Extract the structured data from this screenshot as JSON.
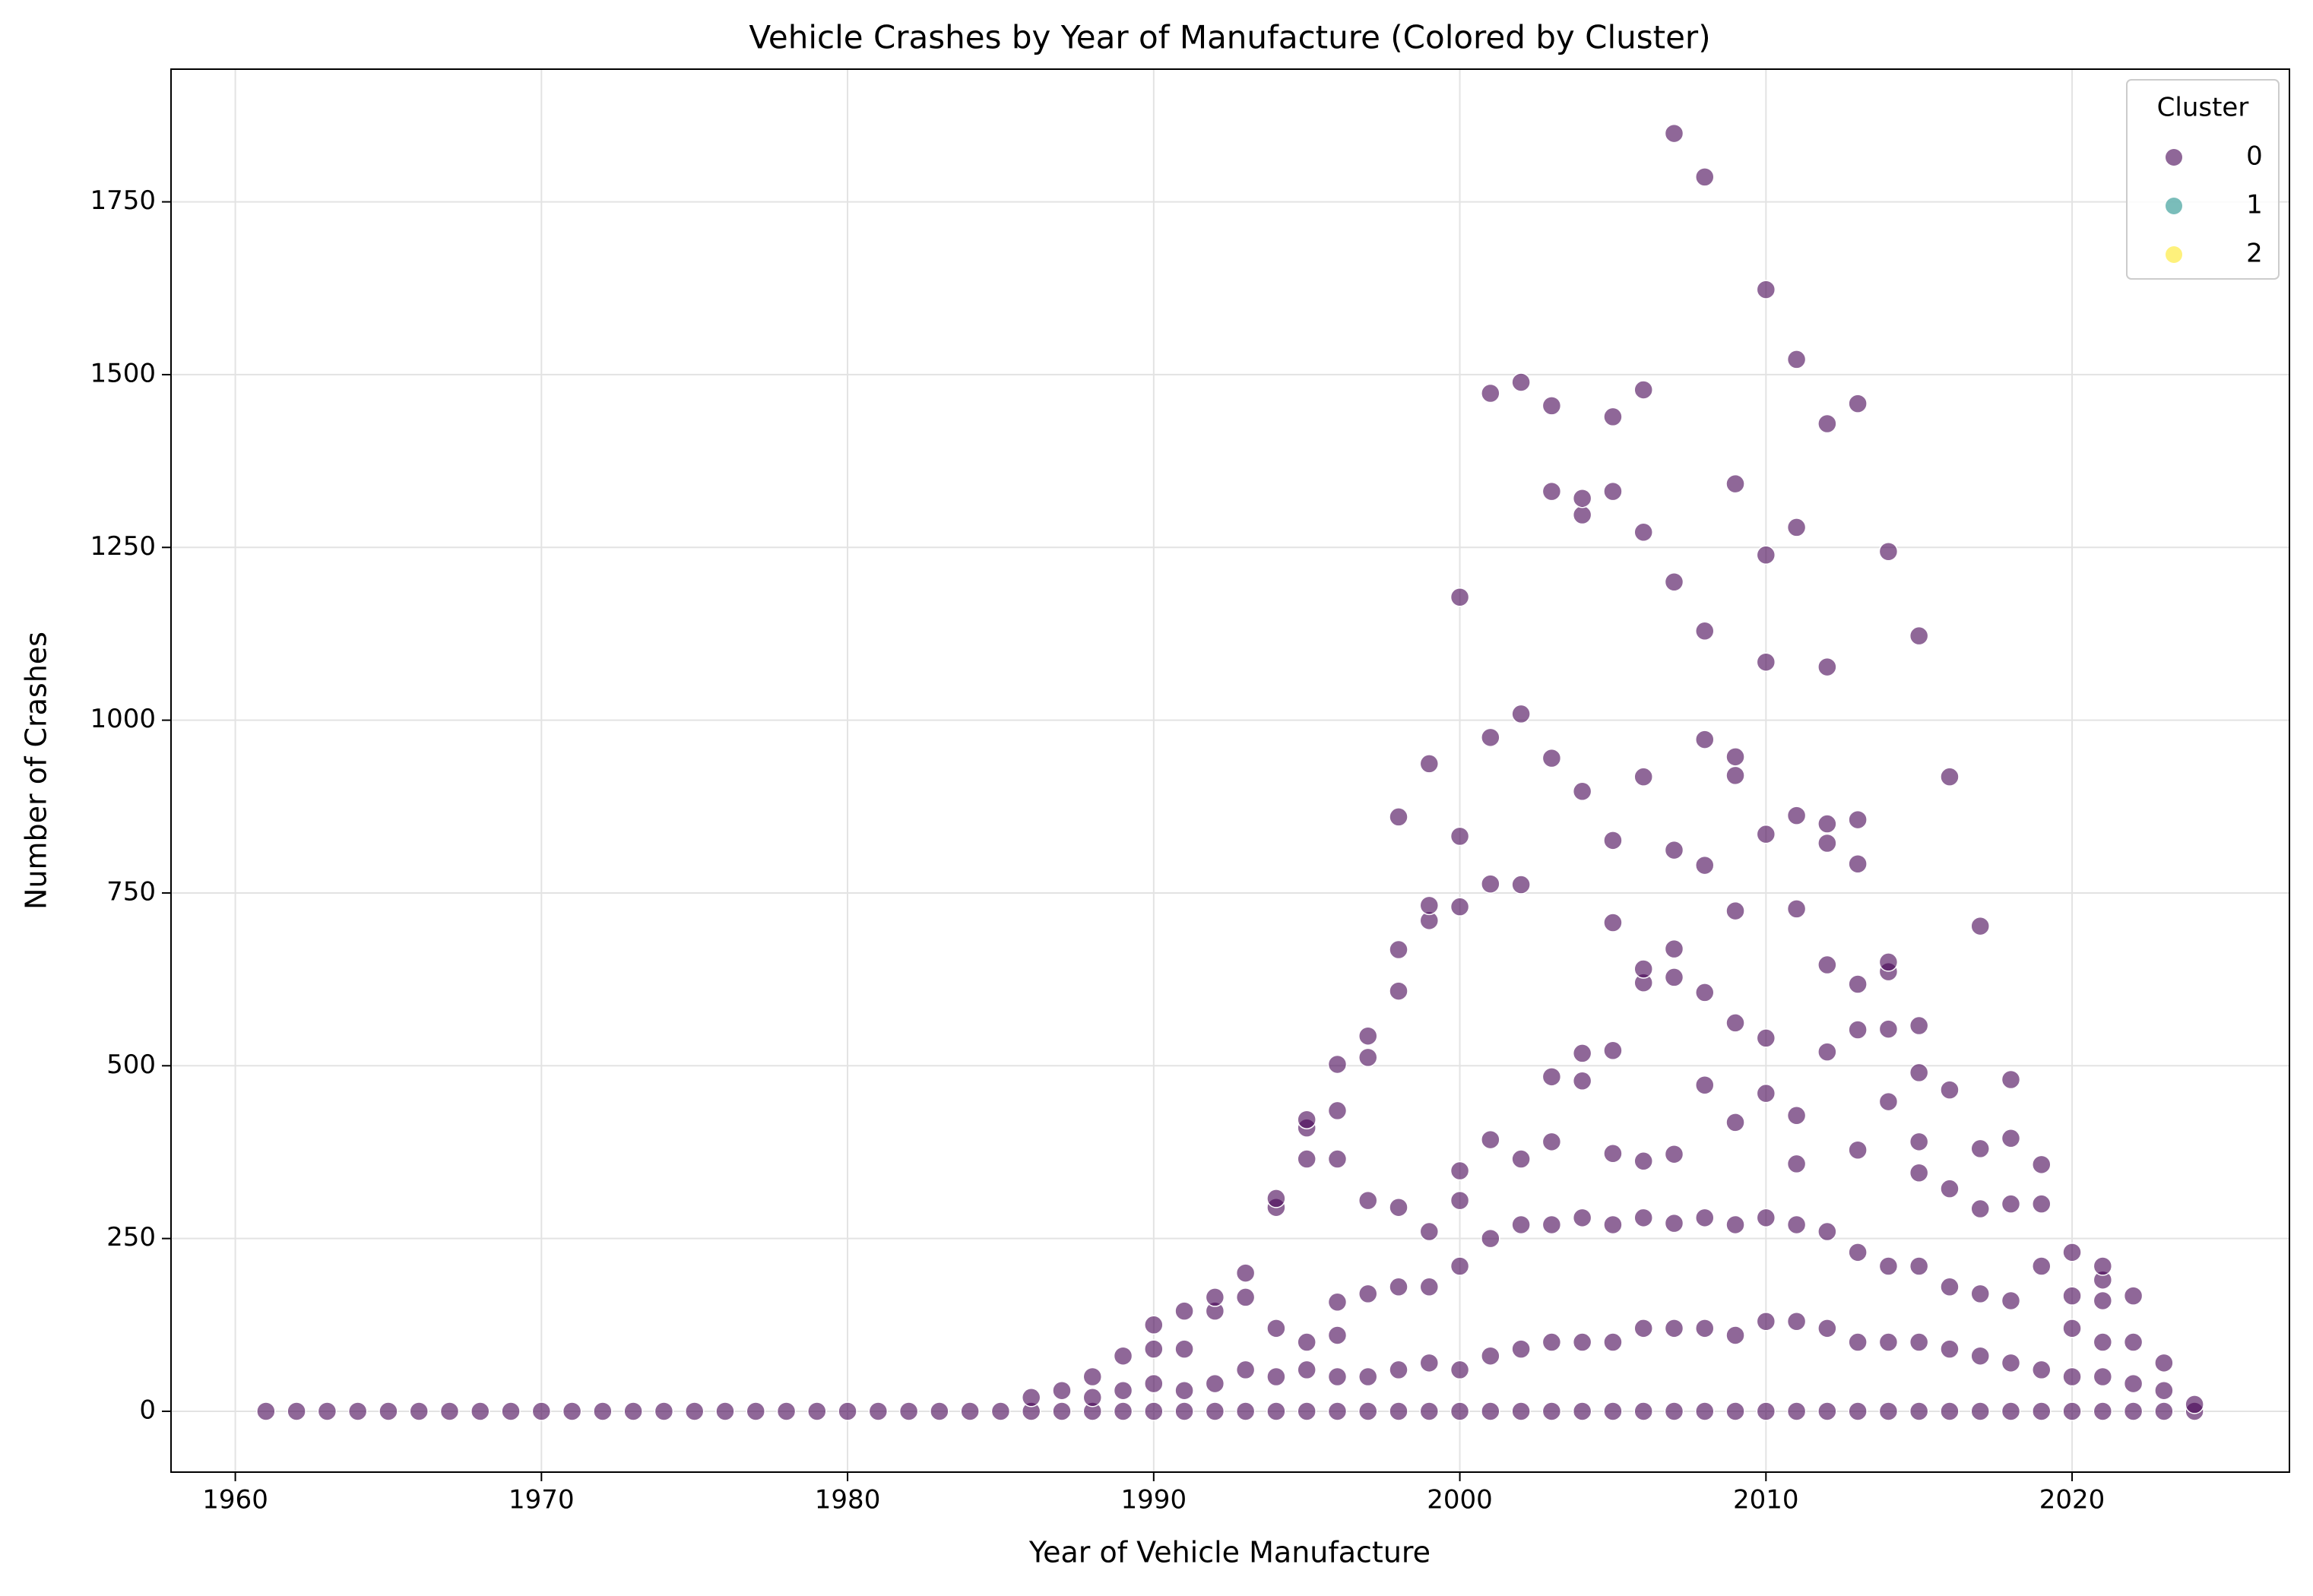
{
  "chart_data": {
    "type": "scatter",
    "title": "Vehicle Crashes by Year of Manufacture (Colored by Cluster)",
    "x_label": "Year of Vehicle Manufacture",
    "y_label": "Number of Crashes",
    "xlim": [
      1957.9,
      2027.1
    ],
    "ylim": [
      -88,
      1942
    ],
    "xticks": [
      1960,
      1970,
      1980,
      1990,
      2000,
      2010,
      2020
    ],
    "yticks": [
      0,
      250,
      500,
      750,
      1000,
      1250,
      1500,
      1750
    ],
    "grid": true,
    "legend_title": "Cluster",
    "legend_position": "upper-right",
    "series": [
      {
        "name": "0",
        "color": "#440154",
        "x": [
          1961,
          1962,
          1963,
          1964,
          1965,
          1966,
          1967,
          1968,
          1969,
          1970,
          1971,
          1972,
          1973,
          1974,
          1975,
          1976,
          1977,
          1978,
          1979,
          1980,
          1981,
          1982,
          1983,
          1984,
          1985,
          1986,
          1986,
          1987,
          1987,
          1988,
          1988,
          1988,
          1989,
          1989,
          1989,
          1990,
          1990,
          1990,
          1990,
          1991,
          1991,
          1991,
          1991,
          1992,
          1992,
          1992,
          1992,
          1993,
          1993,
          1993,
          1993,
          1994,
          1994,
          1994,
          1994,
          1994,
          1995,
          1995,
          1995,
          1995,
          1995,
          1995,
          1996,
          1996,
          1996,
          1996,
          1996,
          1996,
          1996,
          1997,
          1997,
          1997,
          1997,
          1997,
          1997,
          1998,
          1998,
          1998,
          1998,
          1998,
          1998,
          1998,
          1999,
          1999,
          1999,
          1999,
          1999,
          1999,
          1999,
          2000,
          2000,
          2000,
          2000,
          2000,
          2000,
          2000,
          2000,
          2001,
          2001,
          2001,
          2001,
          2001,
          2001,
          2001,
          2002,
          2002,
          2002,
          2002,
          2002,
          2002,
          2002,
          2003,
          2003,
          2003,
          2003,
          2003,
          2003,
          2003,
          2003,
          2004,
          2004,
          2004,
          2004,
          2004,
          2004,
          2004,
          2004,
          2005,
          2005,
          2005,
          2005,
          2005,
          2005,
          2005,
          2005,
          2005,
          2006,
          2006,
          2006,
          2006,
          2006,
          2006,
          2006,
          2006,
          2006,
          2007,
          2007,
          2007,
          2007,
          2007,
          2007,
          2007,
          2007,
          2007,
          2008,
          2008,
          2008,
          2008,
          2008,
          2008,
          2008,
          2008,
          2008,
          2009,
          2009,
          2009,
          2009,
          2009,
          2009,
          2009,
          2009,
          2009,
          2010,
          2010,
          2010,
          2010,
          2010,
          2010,
          2010,
          2010,
          2010,
          2011,
          2011,
          2011,
          2011,
          2011,
          2011,
          2011,
          2011,
          2011,
          2012,
          2012,
          2012,
          2012,
          2012,
          2012,
          2012,
          2012,
          2012,
          2013,
          2013,
          2013,
          2013,
          2013,
          2013,
          2013,
          2013,
          2013,
          2014,
          2014,
          2014,
          2014,
          2014,
          2014,
          2014,
          2014,
          2015,
          2015,
          2015,
          2015,
          2015,
          2015,
          2015,
          2015,
          2016,
          2016,
          2016,
          2016,
          2016,
          2016,
          2017,
          2017,
          2017,
          2017,
          2017,
          2017,
          2018,
          2018,
          2018,
          2018,
          2018,
          2018,
          2019,
          2019,
          2019,
          2019,
          2019,
          2020,
          2020,
          2020,
          2020,
          2020,
          2021,
          2021,
          2021,
          2021,
          2021,
          2021,
          2022,
          2022,
          2022,
          2022,
          2023,
          2023,
          2023,
          2024,
          2024
        ],
        "y": [
          0,
          0,
          0,
          0,
          0,
          0,
          0,
          0,
          0,
          0,
          0,
          0,
          0,
          0,
          0,
          0,
          0,
          0,
          0,
          0,
          0,
          0,
          0,
          0,
          0,
          0,
          20,
          0,
          30,
          0,
          20,
          50,
          0,
          30,
          80,
          0,
          40,
          90,
          125,
          0,
          30,
          90,
          145,
          0,
          40,
          145,
          165,
          0,
          60,
          165,
          200,
          0,
          50,
          120,
          295,
          308,
          0,
          60,
          100,
          365,
          410,
          422,
          0,
          50,
          110,
          158,
          365,
          435,
          502,
          0,
          50,
          170,
          305,
          512,
          543,
          0,
          60,
          180,
          295,
          608,
          668,
          860,
          0,
          70,
          180,
          260,
          710,
          732,
          937,
          0,
          60,
          210,
          305,
          348,
          730,
          832,
          1178,
          0,
          80,
          250,
          393,
          763,
          975,
          1473,
          0,
          90,
          270,
          365,
          762,
          1009,
          1489,
          0,
          100,
          270,
          390,
          484,
          945,
          1331,
          1455,
          0,
          100,
          280,
          478,
          518,
          897,
          1297,
          1321,
          0,
          100,
          270,
          373,
          522,
          707,
          826,
          1331,
          1439,
          0,
          120,
          280,
          362,
          620,
          640,
          918,
          1272,
          1478,
          0,
          120,
          272,
          372,
          628,
          669,
          812,
          1200,
          1849,
          0,
          120,
          280,
          472,
          606,
          790,
          972,
          1129,
          1786,
          0,
          110,
          270,
          418,
          562,
          724,
          920,
          947,
          1342,
          0,
          130,
          280,
          460,
          540,
          835,
          1084,
          1239,
          1623,
          0,
          130,
          270,
          358,
          428,
          727,
          862,
          1279,
          1522,
          0,
          120,
          260,
          520,
          646,
          822,
          850,
          1077,
          1429,
          0,
          100,
          230,
          378,
          552,
          618,
          792,
          856,
          1458,
          0,
          100,
          210,
          448,
          553,
          636,
          650,
          1244,
          0,
          100,
          210,
          345,
          390,
          490,
          558,
          1122,
          0,
          90,
          180,
          322,
          465,
          918,
          0,
          80,
          170,
          293,
          380,
          702,
          0,
          70,
          160,
          300,
          395,
          480,
          0,
          60,
          210,
          300,
          357,
          0,
          50,
          120,
          167,
          230,
          0,
          50,
          100,
          160,
          190,
          210,
          0,
          40,
          100,
          167,
          0,
          30,
          70,
          0,
          10
        ]
      },
      {
        "name": "1",
        "color": "#21918c",
        "x": [],
        "y": []
      },
      {
        "name": "2",
        "color": "#fde725",
        "x": [],
        "y": []
      }
    ]
  }
}
